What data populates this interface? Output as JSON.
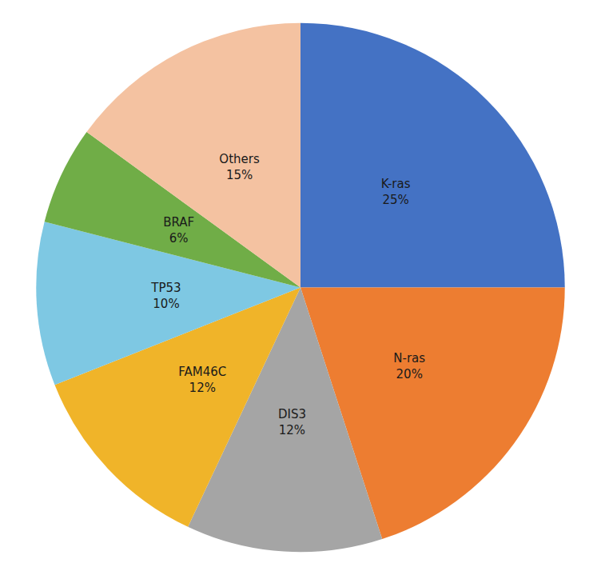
{
  "chart_data": {
    "type": "pie",
    "categories": [
      "K-ras",
      "N-ras",
      "DIS3",
      "FAM46C",
      "TP53",
      "BRAF",
      "Others"
    ],
    "values": [
      25,
      20,
      12,
      12,
      10,
      6,
      15
    ],
    "value_labels": [
      "25%",
      "20%",
      "12%",
      "12%",
      "10%",
      "6%",
      "15%"
    ],
    "colors": [
      "#4472C4",
      "#ED7D31",
      "#A5A5A5",
      "#F0B429",
      "#7EC8E3",
      "#70AD47",
      "#F4C2A1"
    ],
    "data_labels": true,
    "legend": false
  }
}
